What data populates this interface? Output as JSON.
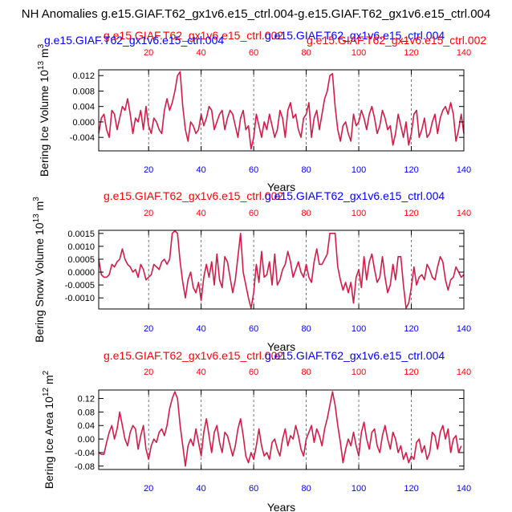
{
  "figure": {
    "title": "NH Anomalies g.e15.GIAF.T62_gx1v6.e15_ctrl.004-g.e15.GIAF.T62_gx1v6.e15_ctrl.004",
    "x_unit_label": "Years",
    "colors": {
      "red": "#ff0000",
      "blue": "#0000ff",
      "line": "#d41c46"
    }
  },
  "chart_data": [
    {
      "type": "line",
      "title": "Bering Ice Volume",
      "ylabel": "Bering Ice Volume 10",
      "ylabel_exp": "13",
      "ylabel_unit": " m",
      "ylabel_unit_exp": "3",
      "xlabel": "Years",
      "xlim": [
        1,
        140
      ],
      "ylim": [
        -0.0075,
        0.0135
      ],
      "yticks": [
        -0.004,
        0.0,
        0.004,
        0.008,
        0.012
      ],
      "ytick_labels": [
        "-0.004",
        "0.000",
        "0.004",
        "0.008",
        "0.012"
      ],
      "xticks": [
        20,
        40,
        60,
        80,
        100,
        120,
        140
      ],
      "xtick_labels": [
        "20",
        "40",
        "60",
        "80",
        "100",
        "120",
        "140"
      ],
      "top_xtick_labels": [
        "20",
        "40",
        "60",
        "80",
        "100",
        "120",
        "140"
      ],
      "case_left_red": "g.e15.GIAF.T62_gx1v6.e15_ctrl.002",
      "case_left_blue": "g.e15.GIAF.T62_gx1v6.e15_ctrl.004",
      "case_right_blue": "g.e15.GIAF.T62_gx1v6.e15_ctrl.004",
      "case_right_red": "g.e15.GIAF.T62_gx1v6.e15_ctrl.002",
      "series": [
        {
          "name": "anomaly",
          "values": [
            -0.003,
            0.001,
            0.002,
            -0.002,
            -0.004,
            0.003,
            0.002,
            -0.002,
            0.001,
            0.004,
            0.003,
            0.006,
            0.002,
            -0.003,
            0.001,
            0.0,
            0.003,
            -0.002,
            0.004,
            -0.001,
            -0.003,
            0.001,
            0.0,
            -0.002,
            -0.003,
            0.003,
            0.006,
            0.003,
            0.005,
            0.008,
            0.012,
            0.013,
            0.004,
            -0.002,
            -0.005,
            0.0,
            -0.001,
            -0.003,
            -0.002,
            0.002,
            -0.001,
            0.001,
            0.004,
            0.003,
            -0.002,
            0.0,
            0.002,
            0.003,
            -0.002,
            0.001,
            0.003,
            0.002,
            -0.001,
            -0.004,
            0.001,
            0.003,
            -0.002,
            -0.001,
            -0.007,
            -0.004,
            0.002,
            -0.001,
            -0.004,
            0.0,
            -0.002,
            0.002,
            -0.001,
            -0.004,
            -0.002,
            0.003,
            0.001,
            -0.004,
            0.003,
            0.005,
            0.001,
            0.002,
            -0.002,
            -0.004,
            0.001,
            0.002,
            0.005,
            -0.004,
            0.001,
            0.003,
            -0.002,
            0.002,
            0.006,
            0.008,
            0.012,
            0.0125,
            0.004,
            -0.002,
            -0.005,
            -0.001,
            0.0,
            -0.003,
            -0.005,
            0.002,
            -0.001,
            0.0,
            0.003,
            0.001,
            -0.002,
            0.002,
            0.004,
            0.001,
            -0.003,
            -0.001,
            0.003,
            0.001,
            -0.002,
            -0.001,
            -0.006,
            -0.003,
            0.002,
            -0.001,
            -0.004,
            0.0,
            -0.006,
            -0.003,
            0.002,
            0.003,
            -0.004,
            -0.002,
            0.001,
            -0.004,
            -0.003,
            0.0,
            0.002,
            -0.003,
            0.001,
            0.003,
            0.004,
            0.002,
            0.005,
            0.002,
            -0.005,
            -0.002,
            0.002,
            -0.003
          ]
        }
      ]
    },
    {
      "type": "line",
      "title": "Bering Snow Volume",
      "ylabel": "Bering Snow Volume 10",
      "ylabel_exp": "13",
      "ylabel_unit": " m",
      "ylabel_unit_exp": "3",
      "xlabel": "Years",
      "xlim": [
        1,
        140
      ],
      "ylim": [
        -0.00143,
        0.00162
      ],
      "yticks": [
        -0.001,
        -0.0005,
        0.0,
        0.0005,
        0.001,
        0.0015
      ],
      "ytick_labels": [
        "-0.0010",
        "-0.0005",
        "0.0000",
        "0.0005",
        "0.0010",
        "0.0015"
      ],
      "xticks": [
        20,
        40,
        60,
        80,
        100,
        120,
        140
      ],
      "xtick_labels": [
        "20",
        "40",
        "60",
        "80",
        "100",
        "120",
        "140"
      ],
      "top_xtick_labels": [
        "20",
        "40",
        "60",
        "80",
        "100",
        "120",
        "140"
      ],
      "case_left_red": "g.e15.GIAF.T62_gx1v6.e15_ctrl.002",
      "case_right_blue": "g.e15.GIAF.T62_gx1v6.e15_ctrl.004",
      "series": [
        {
          "name": "anomaly",
          "values": [
            0.0005,
            -0.0001,
            -0.0002,
            -0.0002,
            -0.0001,
            0.0003,
            0.0002,
            0.0004,
            0.0005,
            0.0009,
            0.0005,
            0.0003,
            0.0002,
            0.0,
            0.0001,
            -0.0002,
            0.0003,
            0.0001,
            -0.0003,
            -0.0002,
            -0.0001,
            0.0003,
            0.0002,
            0.0001,
            0.0004,
            0.0005,
            0.0003,
            0.0005,
            0.0015,
            0.0016,
            0.0015,
            0.0004,
            -0.0004,
            -0.001,
            -0.0003,
            0.0,
            -0.0006,
            -0.0008,
            -0.0004,
            -0.0011,
            -0.0002,
            0.0003,
            -0.0002,
            0.0004,
            -0.0005,
            0.0007,
            -0.0003,
            -0.0006,
            0.0006,
            0.0004,
            -0.0002,
            -0.0008,
            -0.0003,
            0.0006,
            0.0015,
            0.0,
            -0.0005,
            -0.001,
            -0.0014,
            -0.0008,
            0.0003,
            -0.0004,
            0.0008,
            -0.0002,
            -0.0001,
            0.0004,
            -0.0005,
            0.0007,
            -0.0005,
            -0.0003,
            0.0001,
            0.0003,
            0.0008,
            0.0004,
            -0.0002,
            0.0001,
            0.0004,
            0.0,
            -0.0002,
            0.0003,
            -0.0002,
            -0.0004,
            0.0004,
            0.0009,
            0.0003,
            0.0003,
            0.0005,
            0.0007,
            0.0015,
            0.0015,
            0.0015,
            0.0002,
            -0.0003,
            -0.0007,
            -0.0004,
            -0.0008,
            -0.0004,
            -0.0012,
            -0.0002,
            0.0001,
            -0.0006,
            0.0006,
            -0.0003,
            0.0004,
            0.0007,
            0.0001,
            -0.0004,
            -0.0002,
            0.0006,
            -0.0002,
            -0.0008,
            -0.0005,
            0.0003,
            -0.0003,
            0.0006,
            0.0006,
            -0.0005,
            -0.0014,
            -0.0012,
            -0.0006,
            0.0002,
            -0.0005,
            -0.0002,
            -0.0001,
            -0.0003,
            0.0003,
            0.0001,
            -0.0002,
            -0.0003,
            0.0002,
            0.0006,
            0.0004,
            -0.0003,
            -0.0007,
            -0.0003,
            -0.0002,
            0.0002,
            0.0,
            -0.0002,
            -0.0001
          ]
        }
      ]
    },
    {
      "type": "line",
      "title": "Bering Ice Area",
      "ylabel": "Bering Ice Area 10",
      "ylabel_exp": "12",
      "ylabel_unit": " m",
      "ylabel_unit_exp": "2",
      "xlabel": "Years",
      "xlim": [
        1,
        140
      ],
      "ylim": [
        -0.09,
        0.145
      ],
      "yticks": [
        -0.08,
        -0.04,
        0.0,
        0.04,
        0.08,
        0.12
      ],
      "ytick_labels": [
        "-0.08",
        "-0.04",
        "0.00",
        "0.04",
        "0.08",
        "0.12"
      ],
      "xticks": [
        20,
        40,
        60,
        80,
        100,
        120,
        140
      ],
      "xtick_labels": [
        "20",
        "40",
        "60",
        "80",
        "100",
        "120",
        "140"
      ],
      "top_xtick_labels": [
        "20",
        "40",
        "60",
        "80",
        "100",
        "120",
        "140"
      ],
      "case_left_red": "g.e15.GIAF.T62_gx1v6.e15_ctrl.002",
      "case_right_blue": "g.e15.GIAF.T62_gx1v6.e15_ctrl.004",
      "series": [
        {
          "name": "anomaly",
          "values": [
            -0.04,
            -0.045,
            -0.045,
            -0.01,
            0.02,
            0.04,
            0.0,
            0.03,
            0.08,
            0.04,
            0.0,
            -0.02,
            0.02,
            0.04,
            0.03,
            -0.03,
            0.01,
            0.04,
            -0.03,
            -0.06,
            -0.02,
            0.0,
            -0.01,
            0.02,
            0.03,
            0.01,
            0.04,
            0.09,
            0.12,
            0.14,
            0.12,
            0.04,
            -0.02,
            -0.08,
            -0.02,
            0.0,
            -0.02,
            0.03,
            -0.01,
            -0.05,
            0.02,
            0.06,
            0.01,
            -0.04,
            0.02,
            0.04,
            -0.01,
            -0.04,
            0.02,
            0.01,
            -0.02,
            -0.05,
            -0.02,
            0.03,
            0.06,
            0.01,
            -0.05,
            -0.07,
            -0.04,
            -0.06,
            -0.02,
            0.03,
            -0.02,
            -0.05,
            -0.04,
            -0.06,
            -0.01,
            0.0,
            -0.03,
            -0.05,
            0.0,
            0.03,
            -0.02,
            0.01,
            0.0,
            0.04,
            0.01,
            -0.03,
            -0.05,
            0.0,
            0.02,
            0.04,
            -0.01,
            0.03,
            0.01,
            -0.02,
            0.03,
            0.06,
            0.1,
            0.14,
            0.1,
            0.04,
            -0.01,
            -0.07,
            -0.03,
            0.0,
            -0.02,
            0.02,
            -0.02,
            -0.05,
            0.02,
            0.05,
            0.0,
            -0.03,
            0.02,
            0.03,
            -0.02,
            -0.04,
            0.01,
            0.04,
            0.0,
            -0.03,
            0.02,
            0.0,
            -0.04,
            -0.02,
            -0.06,
            -0.04,
            -0.07,
            -0.05,
            -0.06,
            -0.01,
            0.0,
            -0.04,
            -0.02,
            -0.06,
            -0.04,
            0.02,
            0.01,
            -0.03,
            0.02,
            0.04,
            0.0,
            0.03,
            -0.04,
            0.0,
            0.01,
            -0.04,
            -0.02
          ]
        }
      ]
    }
  ]
}
